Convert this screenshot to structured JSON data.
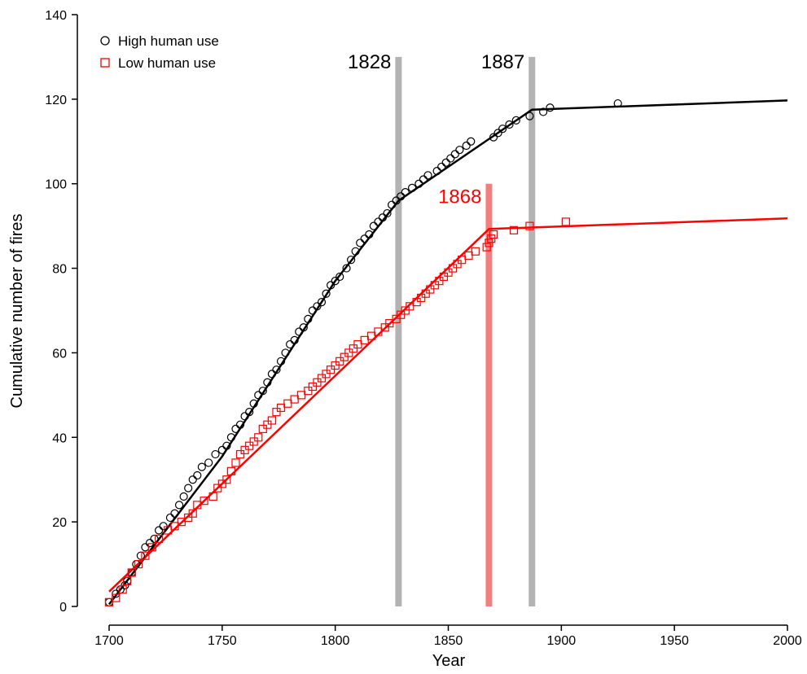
{
  "chart_data": {
    "type": "scatter",
    "title": "",
    "xlabel": "Year",
    "ylabel": "Cumulative number of fires",
    "xlim": [
      1700,
      2000
    ],
    "ylim": [
      0,
      140
    ],
    "xticks": [
      1700,
      1750,
      1800,
      1850,
      1900,
      1950,
      2000
    ],
    "yticks": [
      0,
      20,
      40,
      60,
      80,
      100,
      120,
      140
    ],
    "grid": false,
    "legend_position": "top-left",
    "series": [
      {
        "name": "High human use",
        "color": "#000000",
        "marker": "circle",
        "points": [
          [
            1700,
            1
          ],
          [
            1703,
            3
          ],
          [
            1705,
            4
          ],
          [
            1707,
            5
          ],
          [
            1708,
            6
          ],
          [
            1710,
            8
          ],
          [
            1712,
            10
          ],
          [
            1714,
            12
          ],
          [
            1716,
            14
          ],
          [
            1718,
            15
          ],
          [
            1720,
            16
          ],
          [
            1722,
            18
          ],
          [
            1724,
            19
          ],
          [
            1727,
            21
          ],
          [
            1729,
            22
          ],
          [
            1731,
            24
          ],
          [
            1733,
            26
          ],
          [
            1735,
            28
          ],
          [
            1737,
            30
          ],
          [
            1739,
            31
          ],
          [
            1741,
            33
          ],
          [
            1744,
            34
          ],
          [
            1747,
            36
          ],
          [
            1750,
            37
          ],
          [
            1752,
            38
          ],
          [
            1754,
            40
          ],
          [
            1756,
            42
          ],
          [
            1758,
            43
          ],
          [
            1760,
            45
          ],
          [
            1762,
            46
          ],
          [
            1764,
            48
          ],
          [
            1766,
            50
          ],
          [
            1768,
            51
          ],
          [
            1770,
            53
          ],
          [
            1772,
            55
          ],
          [
            1774,
            56
          ],
          [
            1776,
            58
          ],
          [
            1778,
            60
          ],
          [
            1780,
            62
          ],
          [
            1782,
            63
          ],
          [
            1784,
            65
          ],
          [
            1786,
            66
          ],
          [
            1788,
            68
          ],
          [
            1790,
            70
          ],
          [
            1792,
            71
          ],
          [
            1794,
            72
          ],
          [
            1796,
            74
          ],
          [
            1798,
            76
          ],
          [
            1800,
            77
          ],
          [
            1802,
            78
          ],
          [
            1805,
            80
          ],
          [
            1807,
            82
          ],
          [
            1809,
            84
          ],
          [
            1811,
            86
          ],
          [
            1813,
            87
          ],
          [
            1815,
            88
          ],
          [
            1817,
            90
          ],
          [
            1819,
            91
          ],
          [
            1821,
            92
          ],
          [
            1823,
            93
          ],
          [
            1825,
            95
          ],
          [
            1827,
            96
          ],
          [
            1829,
            97
          ],
          [
            1831,
            98
          ],
          [
            1834,
            99
          ],
          [
            1837,
            100
          ],
          [
            1839,
            101
          ],
          [
            1841,
            102
          ],
          [
            1845,
            103
          ],
          [
            1847,
            104
          ],
          [
            1849,
            105
          ],
          [
            1851,
            106
          ],
          [
            1853,
            107
          ],
          [
            1855,
            108
          ],
          [
            1858,
            109
          ],
          [
            1860,
            110
          ],
          [
            1870,
            111
          ],
          [
            1872,
            112
          ],
          [
            1874,
            113
          ],
          [
            1877,
            114
          ],
          [
            1880,
            115
          ],
          [
            1886,
            116
          ],
          [
            1892,
            117
          ],
          [
            1895,
            118
          ],
          [
            1925,
            119
          ]
        ]
      },
      {
        "name": "Low human use",
        "color": "#ff0000",
        "marker": "square",
        "points": [
          [
            1700,
            1
          ],
          [
            1703,
            2
          ],
          [
            1706,
            4
          ],
          [
            1708,
            6
          ],
          [
            1710,
            8
          ],
          [
            1713,
            10
          ],
          [
            1716,
            12
          ],
          [
            1719,
            14
          ],
          [
            1722,
            16
          ],
          [
            1726,
            18
          ],
          [
            1729,
            19
          ],
          [
            1732,
            20
          ],
          [
            1735,
            21
          ],
          [
            1737,
            22
          ],
          [
            1739,
            24
          ],
          [
            1742,
            25
          ],
          [
            1746,
            26
          ],
          [
            1748,
            28
          ],
          [
            1750,
            29
          ],
          [
            1752,
            30
          ],
          [
            1754,
            32
          ],
          [
            1756,
            34
          ],
          [
            1758,
            36
          ],
          [
            1760,
            37
          ],
          [
            1762,
            38
          ],
          [
            1764,
            39
          ],
          [
            1766,
            40
          ],
          [
            1768,
            42
          ],
          [
            1770,
            43
          ],
          [
            1772,
            44
          ],
          [
            1774,
            46
          ],
          [
            1776,
            47
          ],
          [
            1779,
            48
          ],
          [
            1782,
            49
          ],
          [
            1785,
            50
          ],
          [
            1788,
            51
          ],
          [
            1790,
            52
          ],
          [
            1792,
            53
          ],
          [
            1794,
            54
          ],
          [
            1796,
            55
          ],
          [
            1798,
            56
          ],
          [
            1800,
            57
          ],
          [
            1802,
            58
          ],
          [
            1804,
            59
          ],
          [
            1806,
            60
          ],
          [
            1808,
            61
          ],
          [
            1810,
            62
          ],
          [
            1813,
            63
          ],
          [
            1816,
            64
          ],
          [
            1819,
            65
          ],
          [
            1822,
            66
          ],
          [
            1824,
            67
          ],
          [
            1827,
            68
          ],
          [
            1829,
            69
          ],
          [
            1831,
            70
          ],
          [
            1833,
            71
          ],
          [
            1836,
            72
          ],
          [
            1838,
            73
          ],
          [
            1840,
            74
          ],
          [
            1842,
            75
          ],
          [
            1844,
            76
          ],
          [
            1846,
            77
          ],
          [
            1848,
            78
          ],
          [
            1850,
            79
          ],
          [
            1852,
            80
          ],
          [
            1854,
            81
          ],
          [
            1856,
            82
          ],
          [
            1859,
            83
          ],
          [
            1862,
            84
          ],
          [
            1867,
            85
          ],
          [
            1868,
            86
          ],
          [
            1869,
            87
          ],
          [
            1870,
            88
          ],
          [
            1879,
            89
          ],
          [
            1886,
            90
          ],
          [
            1902,
            91
          ]
        ]
      }
    ],
    "fit_lines": [
      {
        "series": "High human use",
        "color": "#000000",
        "points": [
          [
            1700,
            0.5
          ],
          [
            1750,
            35.5
          ],
          [
            1800,
            77
          ],
          [
            1828,
            96
          ],
          [
            1850,
            104
          ],
          [
            1887,
            117.5
          ],
          [
            2000,
            119.7
          ]
        ]
      },
      {
        "series": "Low human use",
        "color": "#ff0000",
        "points": [
          [
            1700,
            3.5
          ],
          [
            1868,
            89.3
          ],
          [
            2000,
            91.8
          ]
        ]
      }
    ],
    "annotations": [
      {
        "text": "1828",
        "x": 1828,
        "color": "#000000",
        "bar_color": "#b3b3b3",
        "bar_top": 130
      },
      {
        "text": "1868",
        "x": 1868,
        "color": "#ff0000",
        "bar_color": "#f08080",
        "bar_top": 100
      },
      {
        "text": "1887",
        "x": 1887,
        "color": "#000000",
        "bar_color": "#b3b3b3",
        "bar_top": 130
      }
    ]
  }
}
